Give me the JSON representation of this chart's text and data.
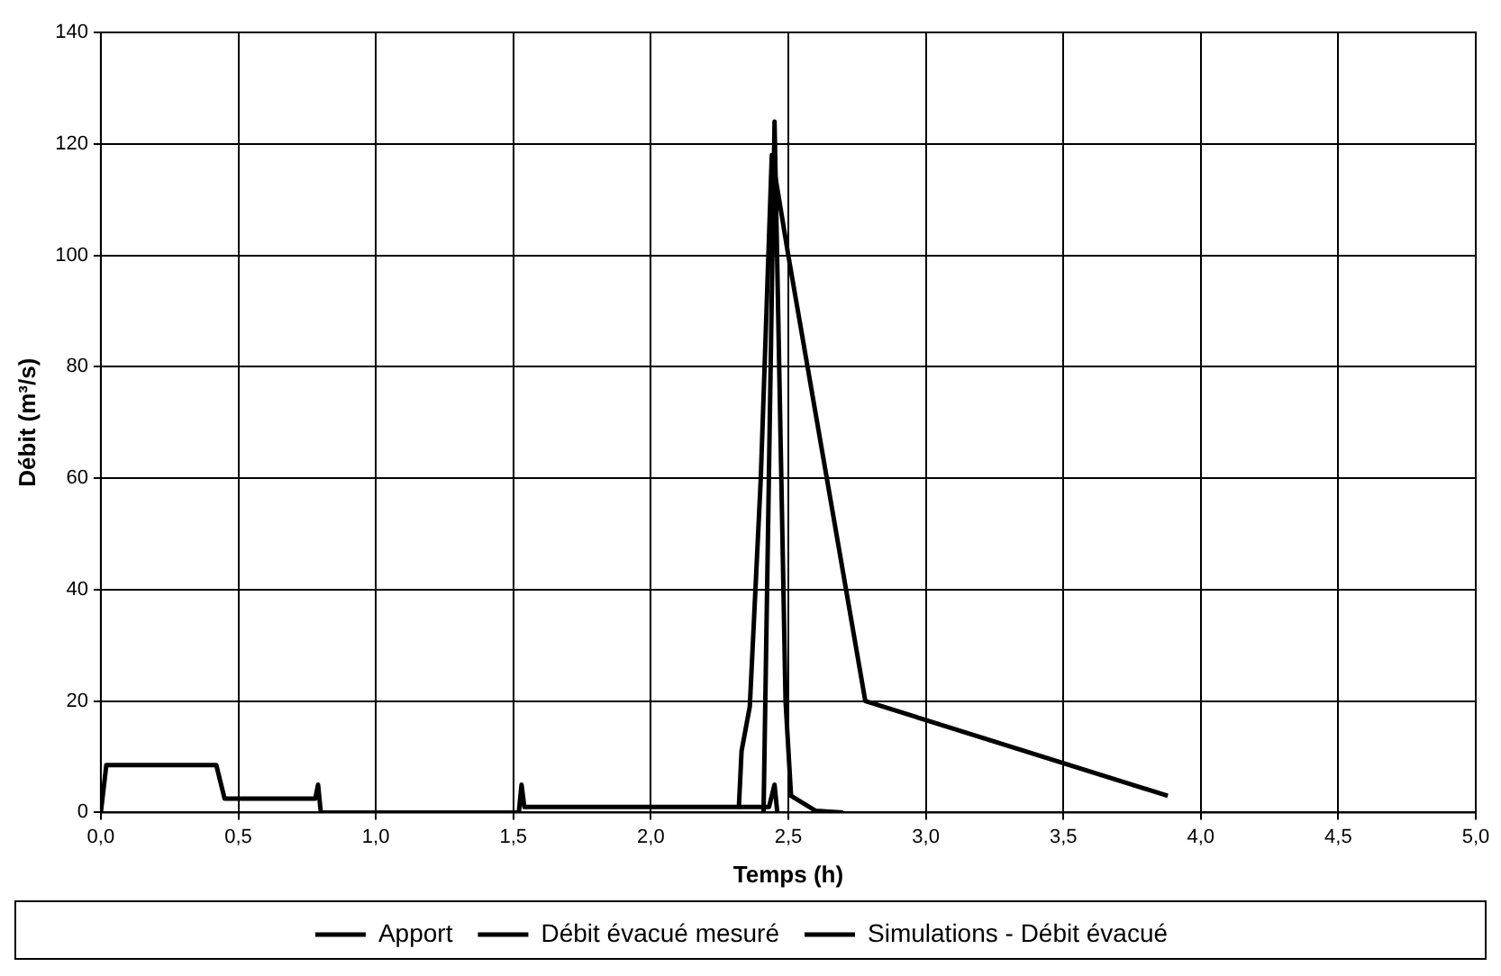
{
  "chart_data": {
    "type": "line",
    "xlabel": "Temps (h)",
    "ylabel": "Débit (m³/s)",
    "xlim": [
      0,
      5
    ],
    "xticks": [
      {
        "value": 0,
        "label": "0,0"
      },
      {
        "value": 0.5,
        "label": "0,5"
      },
      {
        "value": 1,
        "label": "1,0"
      },
      {
        "value": 1.5,
        "label": "1,5"
      },
      {
        "value": 2,
        "label": "2,0"
      },
      {
        "value": 2.5,
        "label": "2,5"
      },
      {
        "value": 3,
        "label": "3,0"
      },
      {
        "value": 3.5,
        "label": "3,5"
      },
      {
        "value": 4,
        "label": "4,0"
      },
      {
        "value": 4.5,
        "label": "4,5"
      },
      {
        "value": 5,
        "label": "5,0"
      }
    ],
    "ylim": [
      0,
      140
    ],
    "yticks": [
      0,
      20,
      40,
      60,
      80,
      100,
      120,
      140
    ],
    "grid": true,
    "legend": "bottom",
    "marker": "none",
    "line_style": "solid",
    "series": [
      {
        "name": "Apport",
        "color": "#000000",
        "x": [
          0,
          0.02,
          0.42,
          0.45,
          0.78,
          0.79,
          0.8,
          1.52,
          1.53,
          1.54,
          2.43,
          2.45,
          2.46
        ],
        "values": [
          0,
          8.5,
          8.5,
          2.5,
          2.5,
          5,
          0,
          0,
          5,
          1,
          1,
          5,
          0
        ]
      },
      {
        "name": "Débit évacué mesuré",
        "color": "#000000",
        "x": [
          2.41,
          2.45,
          2.49,
          2.51,
          2.6,
          2.7
        ],
        "values": [
          0,
          124,
          20,
          3,
          0.3,
          0
        ]
      },
      {
        "name": "Simulations - Débit évacué",
        "color": "#000000",
        "x": [
          2.32,
          2.33,
          2.36,
          2.4,
          2.44,
          2.5,
          2.78,
          3.88
        ],
        "values": [
          0.7,
          11,
          19,
          60,
          118,
          100,
          20,
          3
        ]
      }
    ]
  }
}
